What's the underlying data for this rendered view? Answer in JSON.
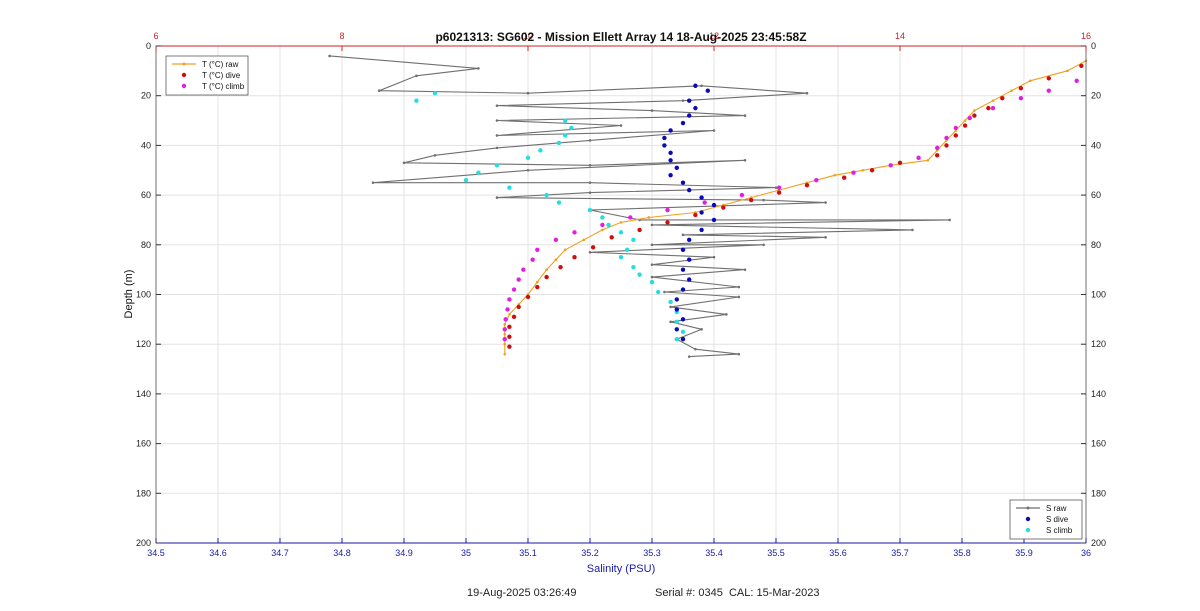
{
  "chart_data": {
    "type": "scatter",
    "title": "p6021313: SG602 - Mission Ellett Array 14 18-Aug-2025 23:45:58Z",
    "xlabel": "Salinity (PSU)",
    "ylabel": "Depth (m)",
    "xlim": [
      34.5,
      36
    ],
    "x2lim": [
      6,
      16
    ],
    "ylim": [
      0,
      200
    ],
    "y_reversed": true,
    "grid": true,
    "x_ticks": [
      "34.5",
      "34.6",
      "34.7",
      "34.8",
      "34.9",
      "35",
      "35.1",
      "35.2",
      "35.3",
      "35.4",
      "35.5",
      "35.6",
      "35.7",
      "35.8",
      "35.9",
      "36"
    ],
    "x2_ticks": [
      "6",
      "8",
      "10",
      "12",
      "14",
      "16"
    ],
    "y_ticks": [
      "0",
      "20",
      "40",
      "60",
      "80",
      "100",
      "120",
      "140",
      "160",
      "180",
      "200"
    ],
    "colors": {
      "bottom_axis": "#1a1aa8",
      "top_axis": "#cc2222",
      "s_raw": "#707070",
      "s_dive": "#0a0ab8",
      "s_climb": "#22dede",
      "t_raw": "#f0a020",
      "t_dive": "#cc1010",
      "t_climb": "#e020e0"
    },
    "legend_left": {
      "placement": "top-left",
      "items": [
        {
          "label": "T (°C) raw",
          "key": "t_raw",
          "kind": "line"
        },
        {
          "label": "T (°C) dive",
          "key": "t_dive",
          "kind": "dot"
        },
        {
          "label": "T (°C) climb",
          "key": "t_climb",
          "kind": "dot"
        }
      ]
    },
    "legend_right": {
      "placement": "bottom-right",
      "items": [
        {
          "label": "S raw",
          "key": "s_raw",
          "kind": "line"
        },
        {
          "label": "S dive",
          "key": "s_dive",
          "kind": "dot"
        },
        {
          "label": "S climb",
          "key": "s_climb",
          "kind": "dot"
        }
      ]
    },
    "series": [
      {
        "key": "s_raw",
        "axis": "salinity",
        "style": "line",
        "points": [
          [
            34.78,
            4
          ],
          [
            35.02,
            9
          ],
          [
            34.92,
            12
          ],
          [
            34.86,
            18
          ],
          [
            35.1,
            19
          ],
          [
            35.38,
            16
          ],
          [
            35.55,
            19
          ],
          [
            35.35,
            22
          ],
          [
            35.05,
            24
          ],
          [
            35.3,
            26
          ],
          [
            35.45,
            28
          ],
          [
            35.05,
            30
          ],
          [
            35.25,
            32
          ],
          [
            35.05,
            36
          ],
          [
            35.4,
            34
          ],
          [
            35.2,
            38
          ],
          [
            35.05,
            41
          ],
          [
            34.95,
            44
          ],
          [
            34.9,
            47
          ],
          [
            35.2,
            48
          ],
          [
            35.45,
            46
          ],
          [
            35.1,
            50
          ],
          [
            34.85,
            55
          ],
          [
            35.2,
            55
          ],
          [
            35.5,
            57
          ],
          [
            35.2,
            59
          ],
          [
            35.05,
            61
          ],
          [
            35.48,
            62
          ],
          [
            35.58,
            63
          ],
          [
            35.2,
            66
          ],
          [
            35.28,
            70
          ],
          [
            35.78,
            70
          ],
          [
            35.3,
            72
          ],
          [
            35.72,
            74
          ],
          [
            35.35,
            76
          ],
          [
            35.58,
            77
          ],
          [
            35.3,
            80
          ],
          [
            35.48,
            80
          ],
          [
            35.2,
            83
          ],
          [
            35.4,
            85
          ],
          [
            35.3,
            88
          ],
          [
            35.45,
            90
          ],
          [
            35.3,
            93
          ],
          [
            35.44,
            97
          ],
          [
            35.32,
            99
          ],
          [
            35.44,
            101
          ],
          [
            35.33,
            105
          ],
          [
            35.42,
            108
          ],
          [
            35.33,
            111
          ],
          [
            35.38,
            114
          ],
          [
            35.34,
            118
          ],
          [
            35.37,
            122
          ],
          [
            35.44,
            124
          ],
          [
            35.36,
            125
          ]
        ]
      },
      {
        "key": "s_dive",
        "axis": "salinity",
        "style": "dot",
        "points": [
          [
            35.37,
            16
          ],
          [
            35.39,
            18
          ],
          [
            35.36,
            22
          ],
          [
            35.37,
            25
          ],
          [
            35.36,
            28
          ],
          [
            35.35,
            31
          ],
          [
            35.33,
            34
          ],
          [
            35.32,
            37
          ],
          [
            35.32,
            40
          ],
          [
            35.33,
            43
          ],
          [
            35.33,
            46
          ],
          [
            35.34,
            49
          ],
          [
            35.33,
            52
          ],
          [
            35.35,
            55
          ],
          [
            35.36,
            58
          ],
          [
            35.38,
            61
          ],
          [
            35.4,
            64
          ],
          [
            35.38,
            67
          ],
          [
            35.4,
            70
          ],
          [
            35.38,
            74
          ],
          [
            35.36,
            78
          ],
          [
            35.35,
            82
          ],
          [
            35.36,
            86
          ],
          [
            35.35,
            90
          ],
          [
            35.36,
            94
          ],
          [
            35.35,
            98
          ],
          [
            35.34,
            102
          ],
          [
            35.34,
            106
          ],
          [
            35.35,
            110
          ],
          [
            35.34,
            114
          ],
          [
            35.35,
            118
          ]
        ]
      },
      {
        "key": "s_climb",
        "axis": "salinity",
        "style": "dot",
        "points": [
          [
            35.16,
            30
          ],
          [
            35.17,
            33
          ],
          [
            35.16,
            36
          ],
          [
            35.15,
            39
          ],
          [
            35.12,
            42
          ],
          [
            35.1,
            45
          ],
          [
            35.05,
            48
          ],
          [
            35.02,
            51
          ],
          [
            35.0,
            54
          ],
          [
            35.07,
            57
          ],
          [
            35.13,
            60
          ],
          [
            35.15,
            63
          ],
          [
            35.2,
            66
          ],
          [
            35.22,
            69
          ],
          [
            35.23,
            72
          ],
          [
            35.25,
            75
          ],
          [
            35.27,
            78
          ],
          [
            35.26,
            82
          ],
          [
            35.25,
            85
          ],
          [
            35.27,
            89
          ],
          [
            35.28,
            92
          ],
          [
            35.3,
            95
          ],
          [
            35.31,
            99
          ],
          [
            35.33,
            103
          ],
          [
            35.34,
            107
          ],
          [
            35.34,
            111
          ],
          [
            35.35,
            115
          ],
          [
            35.34,
            118
          ],
          [
            34.95,
            19
          ],
          [
            34.92,
            22
          ]
        ]
      },
      {
        "key": "t_raw",
        "axis": "temperature",
        "style": "line",
        "points": [
          [
            16,
            6
          ],
          [
            15.8,
            10
          ],
          [
            15.4,
            14
          ],
          [
            15.2,
            18
          ],
          [
            15.0,
            22
          ],
          [
            14.8,
            26
          ],
          [
            14.7,
            30
          ],
          [
            14.6,
            34
          ],
          [
            14.5,
            38
          ],
          [
            14.4,
            42
          ],
          [
            14.3,
            46
          ],
          [
            13.9,
            48
          ],
          [
            13.6,
            50
          ],
          [
            13.3,
            52
          ],
          [
            13.0,
            55
          ],
          [
            12.7,
            58
          ],
          [
            12.4,
            61
          ],
          [
            12.1,
            64
          ],
          [
            11.8,
            67
          ],
          [
            11.3,
            69
          ],
          [
            11.0,
            71
          ],
          [
            10.8,
            74
          ],
          [
            10.6,
            78
          ],
          [
            10.4,
            82
          ],
          [
            10.3,
            86
          ],
          [
            10.2,
            90
          ],
          [
            10.1,
            95
          ],
          [
            10.0,
            100
          ],
          [
            9.9,
            104
          ],
          [
            9.8,
            108
          ],
          [
            9.75,
            112
          ],
          [
            9.75,
            116
          ],
          [
            9.75,
            120
          ],
          [
            9.75,
            124
          ]
        ]
      },
      {
        "key": "t_dive",
        "axis": "temperature",
        "style": "dot",
        "points": [
          [
            15.95,
            8
          ],
          [
            15.6,
            13
          ],
          [
            15.3,
            17
          ],
          [
            15.1,
            21
          ],
          [
            14.95,
            25
          ],
          [
            14.8,
            28
          ],
          [
            14.7,
            32
          ],
          [
            14.6,
            36
          ],
          [
            14.5,
            40
          ],
          [
            14.4,
            44
          ],
          [
            14.0,
            47
          ],
          [
            13.7,
            50
          ],
          [
            13.4,
            53
          ],
          [
            13.0,
            56
          ],
          [
            12.7,
            59
          ],
          [
            12.4,
            62
          ],
          [
            12.1,
            65
          ],
          [
            11.8,
            68
          ],
          [
            11.5,
            71
          ],
          [
            11.2,
            74
          ],
          [
            10.9,
            77
          ],
          [
            10.7,
            81
          ],
          [
            10.5,
            85
          ],
          [
            10.35,
            89
          ],
          [
            10.2,
            93
          ],
          [
            10.1,
            97
          ],
          [
            10.0,
            101
          ],
          [
            9.9,
            105
          ],
          [
            9.85,
            109
          ],
          [
            9.8,
            113
          ],
          [
            9.8,
            117
          ],
          [
            9.8,
            121
          ]
        ]
      },
      {
        "key": "t_climb",
        "axis": "temperature",
        "style": "dot",
        "points": [
          [
            15.9,
            14
          ],
          [
            15.6,
            18
          ],
          [
            15.3,
            21
          ],
          [
            15.0,
            25
          ],
          [
            14.75,
            29
          ],
          [
            14.6,
            33
          ],
          [
            14.5,
            37
          ],
          [
            14.4,
            41
          ],
          [
            14.2,
            45
          ],
          [
            13.9,
            48
          ],
          [
            13.5,
            51
          ],
          [
            13.1,
            54
          ],
          [
            12.7,
            57
          ],
          [
            12.3,
            60
          ],
          [
            11.9,
            63
          ],
          [
            11.5,
            66
          ],
          [
            11.1,
            69
          ],
          [
            10.8,
            72
          ],
          [
            10.5,
            75
          ],
          [
            10.3,
            78
          ],
          [
            10.1,
            82
          ],
          [
            10.05,
            86
          ],
          [
            9.95,
            90
          ],
          [
            9.9,
            94
          ],
          [
            9.85,
            98
          ],
          [
            9.8,
            102
          ],
          [
            9.78,
            106
          ],
          [
            9.76,
            110
          ],
          [
            9.75,
            114
          ],
          [
            9.75,
            118
          ]
        ]
      }
    ]
  },
  "footer": {
    "datetime": "19-Aug-2025 03:26:49",
    "serial": "Serial #: 0345  CAL: 15-Mar-2023"
  }
}
